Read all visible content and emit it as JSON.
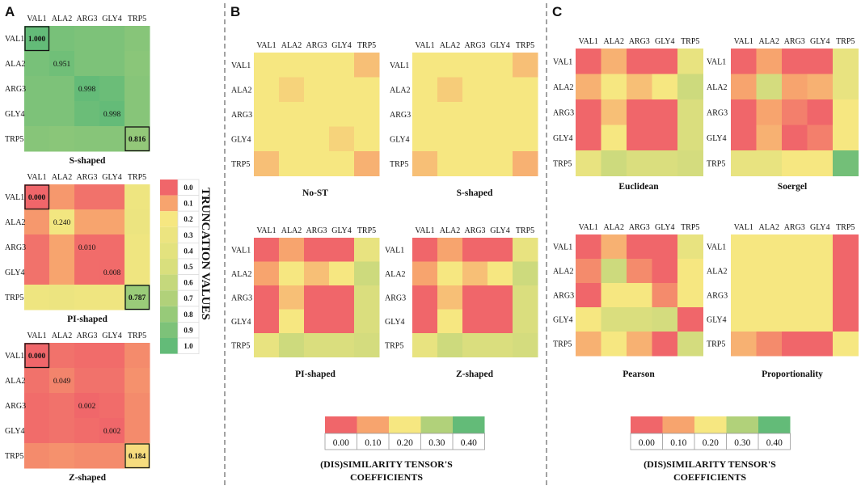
{
  "panels": {
    "a": "A",
    "b": "B",
    "c": "C"
  },
  "chart_data": [
    {
      "id": "A-S",
      "type": "heatmap",
      "title": "S-shaped",
      "labels": [
        "VAL1",
        "ALA2",
        "ARG3",
        "GLY4",
        "TRP5"
      ],
      "values": [
        [
          1.0,
          0.92,
          0.9,
          0.9,
          0.86
        ],
        [
          0.92,
          0.951,
          0.9,
          0.9,
          0.85
        ],
        [
          0.9,
          0.9,
          0.998,
          0.97,
          0.86
        ],
        [
          0.9,
          0.9,
          0.97,
          0.998,
          0.86
        ],
        [
          0.86,
          0.85,
          0.86,
          0.86,
          0.816
        ]
      ],
      "annotations": [
        {
          "row": 0,
          "col": 0,
          "text": "1.000",
          "boxed": true
        },
        {
          "row": 1,
          "col": 1,
          "text": "0.951"
        },
        {
          "row": 2,
          "col": 2,
          "text": "0.998"
        },
        {
          "row": 3,
          "col": 3,
          "text": "0.998"
        },
        {
          "row": 4,
          "col": 4,
          "text": "0.816",
          "boxed": true
        }
      ]
    },
    {
      "id": "A-PI",
      "type": "heatmap",
      "title": "PI-shaped",
      "labels": [
        "VAL1",
        "ALA2",
        "ARG3",
        "GLY4",
        "TRP5"
      ],
      "values": [
        [
          0.0,
          0.08,
          0.02,
          0.02,
          0.28
        ],
        [
          0.08,
          0.24,
          0.1,
          0.1,
          0.3
        ],
        [
          0.02,
          0.1,
          0.01,
          0.01,
          0.27
        ],
        [
          0.02,
          0.1,
          0.01,
          0.008,
          0.27
        ],
        [
          0.28,
          0.3,
          0.27,
          0.27,
          0.787
        ]
      ],
      "annotations": [
        {
          "row": 0,
          "col": 0,
          "text": "0.000",
          "boxed": true
        },
        {
          "row": 1,
          "col": 1,
          "text": "0.240"
        },
        {
          "row": 2,
          "col": 2,
          "text": "0.010"
        },
        {
          "row": 3,
          "col": 3,
          "text": "0.008"
        },
        {
          "row": 4,
          "col": 4,
          "text": "0.787",
          "boxed": true
        }
      ]
    },
    {
      "id": "A-Z",
      "type": "heatmap",
      "title": "Z-shaped",
      "labels": [
        "VAL1",
        "ALA2",
        "ARG3",
        "GLY4",
        "TRP5"
      ],
      "values": [
        [
          0.0,
          0.02,
          0.01,
          0.01,
          0.06
        ],
        [
          0.02,
          0.049,
          0.02,
          0.02,
          0.07
        ],
        [
          0.01,
          0.02,
          0.002,
          0.01,
          0.06
        ],
        [
          0.01,
          0.02,
          0.01,
          0.002,
          0.06
        ],
        [
          0.06,
          0.07,
          0.06,
          0.06,
          0.184
        ]
      ],
      "annotations": [
        {
          "row": 0,
          "col": 0,
          "text": "0.000",
          "boxed": true
        },
        {
          "row": 1,
          "col": 1,
          "text": "0.049"
        },
        {
          "row": 2,
          "col": 2,
          "text": "0.002"
        },
        {
          "row": 3,
          "col": 3,
          "text": "0.002"
        },
        {
          "row": 4,
          "col": 4,
          "text": "0.184",
          "boxed": true
        }
      ]
    },
    {
      "id": "B-NoST",
      "type": "heatmap",
      "title": "No-ST",
      "labels": [
        "VAL1",
        "ALA2",
        "ARG3",
        "GLY4",
        "TRP5"
      ],
      "values": [
        [
          0.2,
          0.2,
          0.2,
          0.2,
          0.14
        ],
        [
          0.2,
          0.17,
          0.2,
          0.2,
          0.2
        ],
        [
          0.2,
          0.2,
          0.2,
          0.2,
          0.2
        ],
        [
          0.2,
          0.2,
          0.2,
          0.17,
          0.2
        ],
        [
          0.14,
          0.2,
          0.2,
          0.2,
          0.12
        ]
      ]
    },
    {
      "id": "B-S",
      "type": "heatmap",
      "title": "S-shaped",
      "labels": [
        "VAL1",
        "ALA2",
        "ARG3",
        "GLY4",
        "TRP5"
      ],
      "values": [
        [
          0.2,
          0.2,
          0.2,
          0.2,
          0.14
        ],
        [
          0.2,
          0.16,
          0.2,
          0.2,
          0.2
        ],
        [
          0.2,
          0.2,
          0.2,
          0.2,
          0.2
        ],
        [
          0.2,
          0.2,
          0.2,
          0.2,
          0.2
        ],
        [
          0.14,
          0.2,
          0.2,
          0.2,
          0.12
        ]
      ]
    },
    {
      "id": "B-PI",
      "type": "heatmap",
      "title": "PI-shaped",
      "labels": [
        "VAL1",
        "ALA2",
        "ARG3",
        "GLY4",
        "TRP5"
      ],
      "values": [
        [
          0.0,
          0.1,
          0.0,
          0.0,
          0.22
        ],
        [
          0.1,
          0.2,
          0.14,
          0.2,
          0.26
        ],
        [
          0.0,
          0.14,
          0.0,
          0.0,
          0.24
        ],
        [
          0.0,
          0.2,
          0.0,
          0.0,
          0.24
        ],
        [
          0.22,
          0.26,
          0.24,
          0.24,
          0.25
        ]
      ]
    },
    {
      "id": "B-Z",
      "type": "heatmap",
      "title": "Z-shaped",
      "labels": [
        "VAL1",
        "ALA2",
        "ARG3",
        "GLY4",
        "TRP5"
      ],
      "values": [
        [
          0.0,
          0.1,
          0.0,
          0.0,
          0.22
        ],
        [
          0.1,
          0.2,
          0.14,
          0.2,
          0.26
        ],
        [
          0.0,
          0.14,
          0.0,
          0.0,
          0.24
        ],
        [
          0.0,
          0.2,
          0.0,
          0.0,
          0.24
        ],
        [
          0.22,
          0.26,
          0.24,
          0.24,
          0.25
        ]
      ]
    },
    {
      "id": "C-Euclidean",
      "type": "heatmap",
      "title": "Euclidean",
      "labels": [
        "VAL1",
        "ALA2",
        "ARG3",
        "GLY4",
        "TRP5"
      ],
      "values": [
        [
          0.0,
          0.12,
          0.0,
          0.0,
          0.22
        ],
        [
          0.12,
          0.2,
          0.14,
          0.2,
          0.26
        ],
        [
          0.0,
          0.14,
          0.0,
          0.0,
          0.24
        ],
        [
          0.0,
          0.2,
          0.0,
          0.0,
          0.24
        ],
        [
          0.22,
          0.26,
          0.24,
          0.24,
          0.25
        ]
      ]
    },
    {
      "id": "C-Soergel",
      "type": "heatmap",
      "title": "Soergel",
      "labels": [
        "VAL1",
        "ALA2",
        "ARG3",
        "GLY4",
        "TRP5"
      ],
      "values": [
        [
          0.0,
          0.1,
          0.0,
          0.0,
          0.22
        ],
        [
          0.1,
          0.25,
          0.1,
          0.12,
          0.22
        ],
        [
          0.0,
          0.1,
          0.04,
          0.0,
          0.2
        ],
        [
          0.0,
          0.12,
          0.0,
          0.04,
          0.2
        ],
        [
          0.22,
          0.22,
          0.2,
          0.2,
          0.38
        ]
      ]
    },
    {
      "id": "C-Pearson",
      "type": "heatmap",
      "title": "Pearson",
      "labels": [
        "VAL1",
        "ALA2",
        "ARG3",
        "GLY4",
        "TRP5"
      ],
      "values": [
        [
          0.0,
          0.12,
          0.0,
          0.0,
          0.22
        ],
        [
          0.06,
          0.26,
          0.06,
          0.0,
          0.2
        ],
        [
          0.0,
          0.2,
          0.2,
          0.06,
          0.2
        ],
        [
          0.2,
          0.24,
          0.24,
          0.25,
          0.0
        ],
        [
          0.12,
          0.2,
          0.12,
          0.0,
          0.25
        ]
      ]
    },
    {
      "id": "C-Proportionality",
      "type": "heatmap",
      "title": "Proportionality",
      "labels": [
        "VAL1",
        "ALA2",
        "ARG3",
        "GLY4",
        "TRP5"
      ],
      "values": [
        [
          0.2,
          0.2,
          0.2,
          0.2,
          0.0
        ],
        [
          0.2,
          0.2,
          0.2,
          0.2,
          0.0
        ],
        [
          0.2,
          0.2,
          0.2,
          0.2,
          0.0
        ],
        [
          0.2,
          0.2,
          0.2,
          0.2,
          0.0
        ],
        [
          0.12,
          0.06,
          0.0,
          0.0,
          0.2
        ]
      ]
    }
  ],
  "truncation_legend": {
    "title": "TRUNCATION VALUES",
    "levels": [
      "0.0",
      "0.1",
      "0.2",
      "0.3",
      "0.4",
      "0.5",
      "0.6",
      "0.7",
      "0.8",
      "0.9",
      "1.0"
    ]
  },
  "coef_legend": {
    "title_line1": "(DIS)SIMILARITY TENSOR'S",
    "title_line2": "COEFFICIENTS",
    "ticks": [
      "0.00",
      "0.10",
      "0.20",
      "0.30",
      "0.40"
    ]
  },
  "colors": {
    "red": "#f0666a",
    "orange": "#f7a46e",
    "yellow": "#f6e781",
    "lgreen": "#b1d17a",
    "green": "#63bb78"
  }
}
